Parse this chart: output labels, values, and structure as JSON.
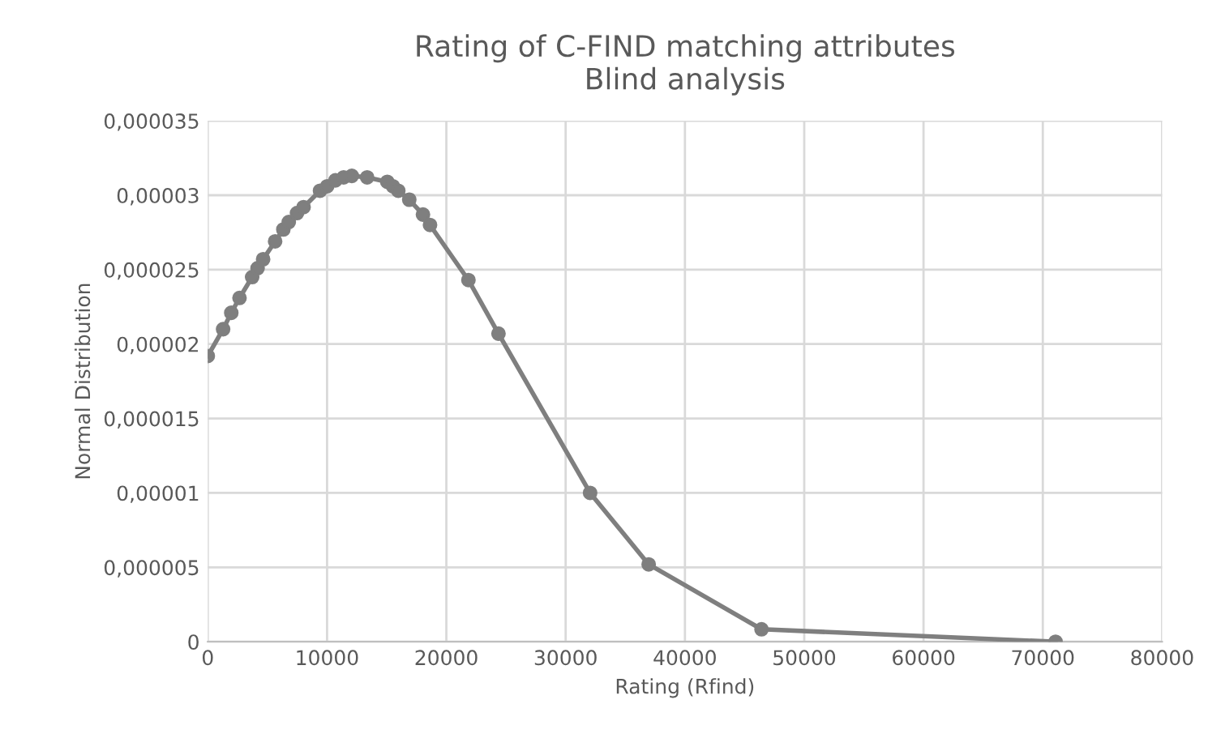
{
  "chart_data": {
    "type": "line",
    "title": "Rating of C-FIND matching attributes\nBlind analysis",
    "xlabel": "Rating (Rfind)",
    "ylabel": "Normal Distribution",
    "series": [
      {
        "color": "#7f7f7f",
        "x": [
          0,
          1285,
          1970,
          2660,
          3720,
          4175,
          4640,
          5645,
          6335,
          6790,
          7480,
          8030,
          9410,
          10010,
          10700,
          11390,
          12075,
          13360,
          15050,
          15520,
          15970,
          16890,
          18040,
          18630,
          21850,
          24370,
          32050,
          36960,
          46420,
          71070
        ],
        "values": [
          1.92e-05,
          2.1e-05,
          2.21e-05,
          2.31e-05,
          2.45e-05,
          2.51e-05,
          2.57e-05,
          2.69e-05,
          2.77e-05,
          2.82e-05,
          2.88e-05,
          2.92e-05,
          3.03e-05,
          3.06e-05,
          3.1e-05,
          3.12e-05,
          3.13e-05,
          3.12e-05,
          3.09e-05,
          3.06e-05,
          3.03e-05,
          2.97e-05,
          2.87e-05,
          2.8e-05,
          2.43e-05,
          2.07e-05,
          1e-05,
          5.2e-06,
          8.4e-07,
          0
        ]
      }
    ],
    "xlim": [
      0,
      80000
    ],
    "xticks": [
      0,
      10000,
      20000,
      30000,
      40000,
      50000,
      60000,
      70000,
      80000
    ],
    "ylim": [
      0,
      3.5e-05
    ],
    "yticks": [
      {
        "value": 0,
        "label": "0"
      },
      {
        "value": 5e-06,
        "label": "0,000005"
      },
      {
        "value": 1e-05,
        "label": "0,00001"
      },
      {
        "value": 1.5e-05,
        "label": "0,000015"
      },
      {
        "value": 2e-05,
        "label": "0,00002"
      },
      {
        "value": 2.5e-05,
        "label": "0,000025"
      },
      {
        "value": 3e-05,
        "label": "0,00003"
      },
      {
        "value": 3.5e-05,
        "label": "0,000035"
      }
    ],
    "grid": true,
    "marker": "circle",
    "line_style": "solid"
  }
}
